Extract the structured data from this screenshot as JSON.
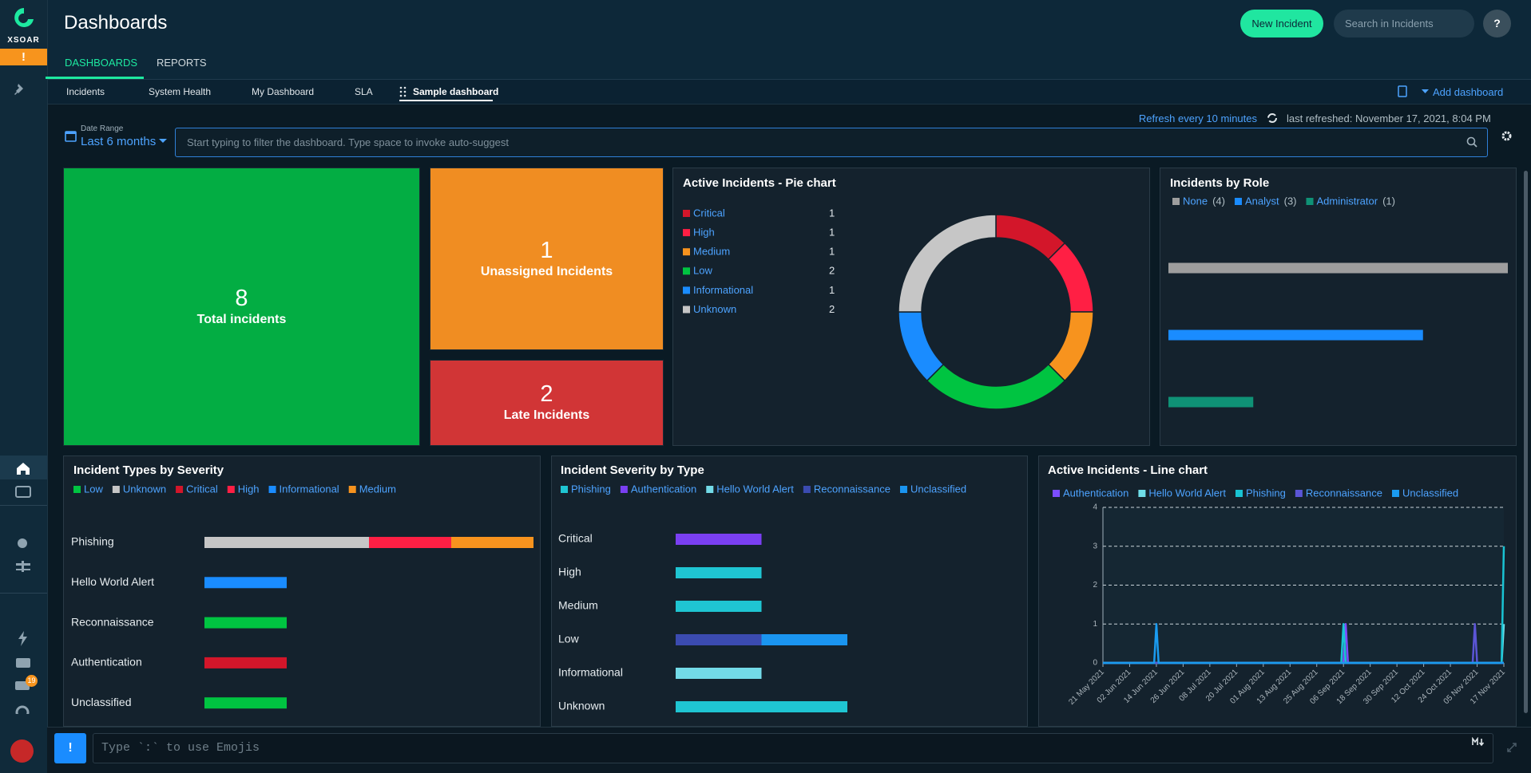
{
  "sidebar": {
    "logo_text": "XSOAR",
    "alert": "!",
    "badge": "19"
  },
  "header": {
    "title": "Dashboards",
    "new_incident": "New Incident",
    "search_placeholder": "Search in Incidents",
    "help": "?"
  },
  "tabs": [
    "DASHBOARDS",
    "REPORTS"
  ],
  "dashboard_tabs": [
    "Incidents",
    "System Health",
    "My Dashboard",
    "SLA",
    "Sample dashboard"
  ],
  "add_dashboard": "Add dashboard",
  "toolbar": {
    "refresh": "Refresh every 10 minutes",
    "last_refreshed": "last refreshed: November 17, 2021, 8:04 PM",
    "date_range_label": "Date Range",
    "date_range": "Last 6 months",
    "filter_placeholder": "Start typing to filter the dashboard. Type space to invoke auto-suggest"
  },
  "widgets": [
    {
      "value": 8,
      "label": "Total incidents",
      "color": "#03ad43"
    },
    {
      "value": 1,
      "label": "Unassigned Incidents",
      "color": "#f08d22"
    },
    {
      "value": 2,
      "label": "Late Incidents",
      "color": "#d13536"
    }
  ],
  "chart_data": [
    {
      "type": "pie",
      "title": "Active Incidents - Pie chart",
      "categories": [
        "Critical",
        "High",
        "Medium",
        "Low",
        "Informational",
        "Unknown"
      ],
      "values": [
        1,
        1,
        1,
        2,
        1,
        2
      ],
      "colors": [
        "#d3162a",
        "#ff1f44",
        "#f7931e",
        "#00c441",
        "#1a8cff",
        "#c6c6c6"
      ]
    },
    {
      "type": "bar",
      "title": "Incidents by Role",
      "categories": [
        "None",
        "Analyst",
        "Administrator"
      ],
      "values": [
        4,
        3,
        1
      ],
      "value_labels": [
        "(4)",
        "(3)",
        "(1)"
      ],
      "colors": [
        "#9e9e9e",
        "#1a8cff",
        "#0f9276"
      ]
    },
    {
      "type": "bar",
      "title": "Incident Types by Severity",
      "categories": [
        "Phishing",
        "Hello World Alert",
        "Reconnaissance",
        "Authentication",
        "Unclassified"
      ],
      "series": [
        {
          "name": "Low",
          "color": "#00c441",
          "values": [
            0,
            0,
            1,
            0,
            1
          ]
        },
        {
          "name": "Unknown",
          "color": "#c6c6c6",
          "values": [
            2,
            0,
            0,
            0,
            0
          ]
        },
        {
          "name": "Critical",
          "color": "#d3162a",
          "values": [
            0,
            0,
            0,
            1,
            0
          ]
        },
        {
          "name": "High",
          "color": "#ff1f44",
          "values": [
            1,
            0,
            0,
            0,
            0
          ]
        },
        {
          "name": "Informational",
          "color": "#1a8cff",
          "values": [
            0,
            1,
            0,
            0,
            0
          ]
        },
        {
          "name": "Medium",
          "color": "#f7931e",
          "values": [
            1,
            0,
            0,
            0,
            0
          ]
        }
      ]
    },
    {
      "type": "bar",
      "title": "Incident Severity by Type",
      "categories": [
        "Critical",
        "High",
        "Medium",
        "Low",
        "Informational",
        "Unknown"
      ],
      "series": [
        {
          "name": "Phishing",
          "color": "#1fc5d2",
          "values": [
            0,
            1,
            1,
            0,
            0,
            2
          ]
        },
        {
          "name": "Authentication",
          "color": "#7a3ff2",
          "values": [
            1,
            0,
            0,
            0,
            0,
            0
          ]
        },
        {
          "name": "Hello World Alert",
          "color": "#73dbe8",
          "values": [
            0,
            0,
            0,
            0,
            1,
            0
          ]
        },
        {
          "name": "Reconnaissance",
          "color": "#3b4bb0",
          "values": [
            0,
            0,
            0,
            1,
            0,
            0
          ]
        },
        {
          "name": "Unclassified",
          "color": "#1a95f0",
          "values": [
            0,
            0,
            0,
            1,
            0,
            0
          ]
        }
      ]
    },
    {
      "type": "line",
      "title": "Active Incidents - Line chart",
      "xlim": [
        "21 May 2021",
        "17 Nov 2021"
      ],
      "xticks": [
        "21 May 2021",
        "02 Jun 2021",
        "14 Jun 2021",
        "26 Jun 2021",
        "08 Jul 2021",
        "20 Jul 2021",
        "01 Aug 2021",
        "13 Aug 2021",
        "25 Aug 2021",
        "06 Sep 2021",
        "18 Sep 2021",
        "30 Sep 2021",
        "12 Oct 2021",
        "24 Oct 2021",
        "05 Nov 2021",
        "17 Nov 2021"
      ],
      "ylim": [
        0,
        4
      ],
      "yticks": [
        0,
        1,
        2,
        3,
        4
      ],
      "grid": true,
      "series": [
        {
          "name": "Authentication",
          "color": "#7c4dff",
          "x": [
            "21 May 2021",
            "06 Sep 2021",
            "07 Sep 2021",
            "08 Sep 2021",
            "17 Nov 2021"
          ],
          "values": [
            0,
            0,
            1,
            0,
            0
          ]
        },
        {
          "name": "Hello World Alert",
          "color": "#6fdde8",
          "x": [
            "21 May 2021",
            "16 Nov 2021",
            "17 Nov 2021"
          ],
          "values": [
            0,
            0,
            1
          ]
        },
        {
          "name": "Phishing",
          "color": "#19c3d3",
          "x": [
            "21 May 2021",
            "05 Sep 2021",
            "06 Sep 2021",
            "07 Sep 2021",
            "16 Nov 2021",
            "17 Nov 2021"
          ],
          "values": [
            0,
            0,
            1,
            0,
            0,
            3
          ]
        },
        {
          "name": "Reconnaissance",
          "color": "#5b55d6",
          "x": [
            "21 May 2021",
            "03 Nov 2021",
            "04 Nov 2021",
            "05 Nov 2021",
            "17 Nov 2021"
          ],
          "values": [
            0,
            0,
            1,
            0,
            0
          ]
        },
        {
          "name": "Unclassified",
          "color": "#1a9bf0",
          "x": [
            "21 May 2021",
            "13 Jun 2021",
            "14 Jun 2021",
            "15 Jun 2021",
            "17 Nov 2021"
          ],
          "values": [
            0,
            0,
            1,
            0,
            0
          ]
        }
      ]
    }
  ],
  "chat": {
    "button": "!",
    "placeholder": "Type `:` to use Emojis"
  }
}
